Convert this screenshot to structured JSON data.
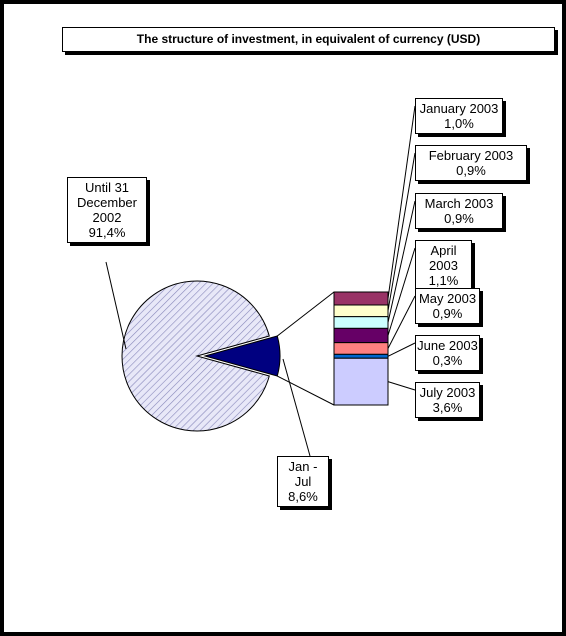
{
  "chart_data": {
    "type": "bar-of-pie",
    "title": "The structure of investment, in equivalent of currency (USD)",
    "pie": {
      "categories": [
        "Until 31 December 2002",
        "Jan - Jul"
      ],
      "values": [
        91.4,
        8.6
      ],
      "value_labels": [
        "91,4%",
        "8,6%"
      ],
      "colors": [
        "#ccccff",
        "#000080"
      ]
    },
    "bar": {
      "categories": [
        "January 2003",
        "February 2003",
        "March 2003",
        "April 2003",
        "May 2003",
        "June 2003",
        "July 2003"
      ],
      "values": [
        1.0,
        0.9,
        0.9,
        1.1,
        0.9,
        0.3,
        3.6
      ],
      "value_labels": [
        "1,0%",
        "0,9%",
        "0,9%",
        "1,1%",
        "0,9%",
        "0,3%",
        "3,6%"
      ],
      "colors": [
        "#993366",
        "#ffffcc",
        "#ccffff",
        "#660066",
        "#ff8080",
        "#0066cc",
        "#ccccff"
      ]
    }
  }
}
